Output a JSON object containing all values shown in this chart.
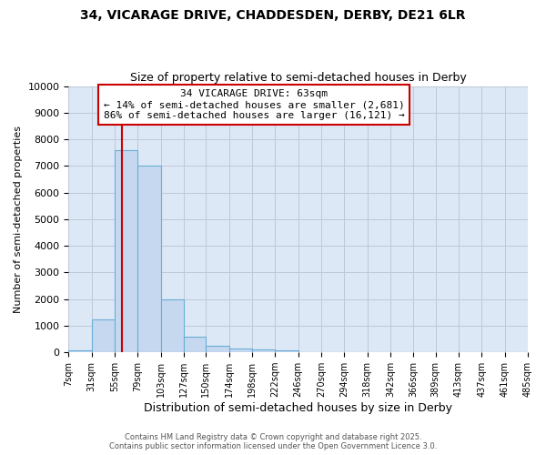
{
  "title_line1": "34, VICARAGE DRIVE, CHADDESDEN, DERBY, DE21 6LR",
  "title_line2": "Size of property relative to semi-detached houses in Derby",
  "xlabel": "Distribution of semi-detached houses by size in Derby",
  "ylabel": "Number of semi-detached properties",
  "bin_edges": [
    7,
    31,
    55,
    79,
    103,
    127,
    150,
    174,
    198,
    222,
    246,
    270,
    294,
    318,
    342,
    366,
    389,
    413,
    437,
    461,
    485
  ],
  "bar_heights": [
    70,
    1250,
    7600,
    7000,
    2000,
    600,
    250,
    130,
    100,
    80,
    0,
    0,
    0,
    0,
    0,
    0,
    0,
    0,
    0,
    0
  ],
  "bar_color": "#c5d8f0",
  "bar_edgecolor": "#6baed6",
  "property_size": 63,
  "red_line_color": "#cc0000",
  "annotation_line1": "34 VICARAGE DRIVE: 63sqm",
  "annotation_line2": "← 14% of semi-detached houses are smaller (2,681)",
  "annotation_line3": "86% of semi-detached houses are larger (16,121) →",
  "annotation_box_color": "#ffffff",
  "annotation_box_edgecolor": "#cc0000",
  "ylim": [
    0,
    10000
  ],
  "yticks": [
    0,
    1000,
    2000,
    3000,
    4000,
    5000,
    6000,
    7000,
    8000,
    9000,
    10000
  ],
  "grid_color": "#c0c8d8",
  "bg_color": "#dce8f5",
  "fig_bg_color": "#ffffff",
  "footer_line1": "Contains HM Land Registry data © Crown copyright and database right 2025.",
  "footer_line2": "Contains public sector information licensed under the Open Government Licence 3.0."
}
